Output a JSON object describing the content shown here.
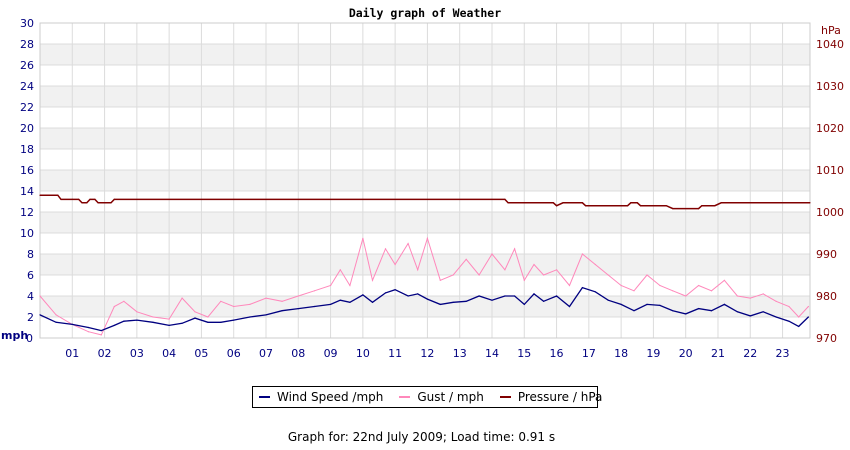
{
  "chart_data": {
    "type": "line",
    "title": "Daily graph of Weather",
    "y_left": {
      "unit_label": "mph",
      "ylim": [
        0,
        30
      ],
      "ticks": [
        "0",
        "2",
        "4",
        "6",
        "8",
        "10",
        "12",
        "14",
        "16",
        "18",
        "20",
        "22",
        "24",
        "26",
        "28",
        "30"
      ],
      "color": "#000080"
    },
    "y_right": {
      "unit_label": "hPa",
      "ylim": [
        970,
        1045
      ],
      "ticks": [
        "970",
        "980",
        "990",
        "1000",
        "1010",
        "1020",
        "1030",
        "1040"
      ],
      "color": "#800000"
    },
    "x_ticks": [
      "01",
      "02",
      "03",
      "04",
      "05",
      "06",
      "07",
      "08",
      "09",
      "10",
      "11",
      "12",
      "13",
      "14",
      "15",
      "16",
      "17",
      "18",
      "19",
      "20",
      "21",
      "22",
      "23"
    ],
    "xlim": [
      0,
      23.85
    ],
    "grid": true,
    "legend_position": "bottom",
    "series": [
      {
        "name": "Wind Speed /mph",
        "color": "#000080",
        "axis": "left",
        "points": [
          [
            0,
            2.2
          ],
          [
            0.5,
            1.5
          ],
          [
            1,
            1.3
          ],
          [
            1.5,
            1.0
          ],
          [
            1.9,
            0.7
          ],
          [
            2.3,
            1.2
          ],
          [
            2.6,
            1.6
          ],
          [
            3,
            1.7
          ],
          [
            3.5,
            1.5
          ],
          [
            4,
            1.2
          ],
          [
            4.4,
            1.4
          ],
          [
            4.8,
            1.9
          ],
          [
            5.2,
            1.5
          ],
          [
            5.6,
            1.5
          ],
          [
            6,
            1.7
          ],
          [
            6.5,
            2.0
          ],
          [
            7,
            2.2
          ],
          [
            7.5,
            2.6
          ],
          [
            8,
            2.8
          ],
          [
            8.5,
            3.0
          ],
          [
            9,
            3.2
          ],
          [
            9.3,
            3.6
          ],
          [
            9.6,
            3.4
          ],
          [
            10,
            4.1
          ],
          [
            10.3,
            3.4
          ],
          [
            10.7,
            4.3
          ],
          [
            11,
            4.6
          ],
          [
            11.4,
            4.0
          ],
          [
            11.7,
            4.2
          ],
          [
            12,
            3.7
          ],
          [
            12.4,
            3.2
          ],
          [
            12.8,
            3.4
          ],
          [
            13.2,
            3.5
          ],
          [
            13.6,
            4.0
          ],
          [
            14,
            3.6
          ],
          [
            14.4,
            4.0
          ],
          [
            14.7,
            4.0
          ],
          [
            15,
            3.2
          ],
          [
            15.3,
            4.2
          ],
          [
            15.6,
            3.5
          ],
          [
            16,
            4.0
          ],
          [
            16.4,
            3.0
          ],
          [
            16.8,
            4.8
          ],
          [
            17.2,
            4.4
          ],
          [
            17.6,
            3.6
          ],
          [
            18,
            3.2
          ],
          [
            18.4,
            2.6
          ],
          [
            18.8,
            3.2
          ],
          [
            19.2,
            3.1
          ],
          [
            19.6,
            2.6
          ],
          [
            20,
            2.3
          ],
          [
            20.4,
            2.8
          ],
          [
            20.8,
            2.6
          ],
          [
            21.2,
            3.2
          ],
          [
            21.6,
            2.5
          ],
          [
            22,
            2.1
          ],
          [
            22.4,
            2.5
          ],
          [
            22.8,
            2.0
          ],
          [
            23.2,
            1.6
          ],
          [
            23.5,
            1.1
          ],
          [
            23.8,
            2.0
          ]
        ]
      },
      {
        "name": "Gust / mph",
        "color": "#ff88bb",
        "axis": "left",
        "points": [
          [
            0,
            4.0
          ],
          [
            0.5,
            2.2
          ],
          [
            1,
            1.3
          ],
          [
            1.5,
            0.6
          ],
          [
            1.9,
            0.3
          ],
          [
            2.3,
            3.0
          ],
          [
            2.6,
            3.5
          ],
          [
            3,
            2.5
          ],
          [
            3.5,
            2.0
          ],
          [
            4,
            1.8
          ],
          [
            4.4,
            3.8
          ],
          [
            4.8,
            2.5
          ],
          [
            5.2,
            2.0
          ],
          [
            5.6,
            3.5
          ],
          [
            6,
            3.0
          ],
          [
            6.5,
            3.2
          ],
          [
            7,
            3.8
          ],
          [
            7.5,
            3.5
          ],
          [
            8,
            4.0
          ],
          [
            8.5,
            4.5
          ],
          [
            9,
            5.0
          ],
          [
            9.3,
            6.5
          ],
          [
            9.6,
            5.0
          ],
          [
            10,
            9.5
          ],
          [
            10.3,
            5.5
          ],
          [
            10.7,
            8.5
          ],
          [
            11,
            7.0
          ],
          [
            11.4,
            9.0
          ],
          [
            11.7,
            6.5
          ],
          [
            12,
            9.5
          ],
          [
            12.4,
            5.5
          ],
          [
            12.8,
            6.0
          ],
          [
            13.2,
            7.5
          ],
          [
            13.6,
            6.0
          ],
          [
            14,
            8.0
          ],
          [
            14.4,
            6.5
          ],
          [
            14.7,
            8.5
          ],
          [
            15,
            5.5
          ],
          [
            15.3,
            7.0
          ],
          [
            15.6,
            6.0
          ],
          [
            16,
            6.5
          ],
          [
            16.4,
            5.0
          ],
          [
            16.8,
            8.0
          ],
          [
            17.2,
            7.0
          ],
          [
            17.6,
            6.0
          ],
          [
            18,
            5.0
          ],
          [
            18.4,
            4.5
          ],
          [
            18.8,
            6.0
          ],
          [
            19.2,
            5.0
          ],
          [
            19.6,
            4.5
          ],
          [
            20,
            4.0
          ],
          [
            20.4,
            5.0
          ],
          [
            20.8,
            4.5
          ],
          [
            21.2,
            5.5
          ],
          [
            21.6,
            4.0
          ],
          [
            22,
            3.8
          ],
          [
            22.4,
            4.2
          ],
          [
            22.8,
            3.5
          ],
          [
            23.2,
            3.0
          ],
          [
            23.5,
            2.0
          ],
          [
            23.8,
            3.0
          ]
        ]
      },
      {
        "name": "Pressure / hPa",
        "color": "#800000",
        "axis": "right",
        "points": [
          [
            0,
            1004.0
          ],
          [
            0.55,
            1004.0
          ],
          [
            0.65,
            1003.0
          ],
          [
            1.0,
            1003.0
          ],
          [
            1.2,
            1003.0
          ],
          [
            1.3,
            1002.2
          ],
          [
            1.45,
            1002.2
          ],
          [
            1.55,
            1003.0
          ],
          [
            1.7,
            1003.0
          ],
          [
            1.8,
            1002.2
          ],
          [
            2.2,
            1002.2
          ],
          [
            2.3,
            1003.0
          ],
          [
            14.4,
            1003.0
          ],
          [
            14.5,
            1002.2
          ],
          [
            15.9,
            1002.2
          ],
          [
            16.0,
            1001.5
          ],
          [
            16.2,
            1002.2
          ],
          [
            16.8,
            1002.2
          ],
          [
            16.9,
            1001.5
          ],
          [
            18.2,
            1001.5
          ],
          [
            18.3,
            1002.2
          ],
          [
            18.5,
            1002.2
          ],
          [
            18.6,
            1001.5
          ],
          [
            19.4,
            1001.5
          ],
          [
            19.6,
            1000.8
          ],
          [
            20.4,
            1000.8
          ],
          [
            20.5,
            1001.5
          ],
          [
            20.9,
            1001.5
          ],
          [
            21.1,
            1002.2
          ],
          [
            23.85,
            1002.2
          ]
        ]
      }
    ]
  },
  "legend": {
    "items": [
      {
        "label": "Wind Speed /mph",
        "color": "#000080"
      },
      {
        "label": "Gust / mph",
        "color": "#ff88bb"
      },
      {
        "label": "Pressure / hPa",
        "color": "#800000"
      }
    ]
  },
  "footer": {
    "text": "Graph for: 22nd July 2009; Load time: 0.91 s"
  }
}
